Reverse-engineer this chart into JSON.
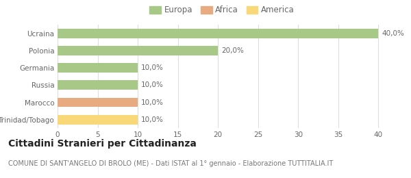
{
  "categories": [
    "Ucraina",
    "Polonia",
    "Germania",
    "Russia",
    "Marocco",
    "Trinidad/Tobago"
  ],
  "values": [
    40.0,
    20.0,
    10.0,
    10.0,
    10.0,
    10.0
  ],
  "bar_colors": [
    "#a8c888",
    "#a8c888",
    "#a8c888",
    "#a8c888",
    "#e8aa80",
    "#f8d878"
  ],
  "bar_labels": [
    "40,0%",
    "20,0%",
    "10,0%",
    "10,0%",
    "10,0%",
    "10,0%"
  ],
  "legend_items": [
    {
      "label": "Europa",
      "color": "#a8c888"
    },
    {
      "label": "Africa",
      "color": "#e8aa80"
    },
    {
      "label": "America",
      "color": "#f8d878"
    }
  ],
  "xlim": [
    0,
    41
  ],
  "xticks": [
    0,
    5,
    10,
    15,
    20,
    25,
    30,
    35,
    40
  ],
  "title": "Cittadini Stranieri per Cittadinanza",
  "subtitle": "COMUNE DI SANT'ANGELO DI BROLO (ME) - Dati ISTAT al 1° gennaio - Elaborazione TUTTITALIA.IT",
  "background_color": "#ffffff",
  "grid_color": "#dddddd",
  "bar_height": 0.55,
  "title_fontsize": 10,
  "subtitle_fontsize": 7,
  "label_fontsize": 7.5,
  "tick_fontsize": 7.5,
  "legend_fontsize": 8.5
}
